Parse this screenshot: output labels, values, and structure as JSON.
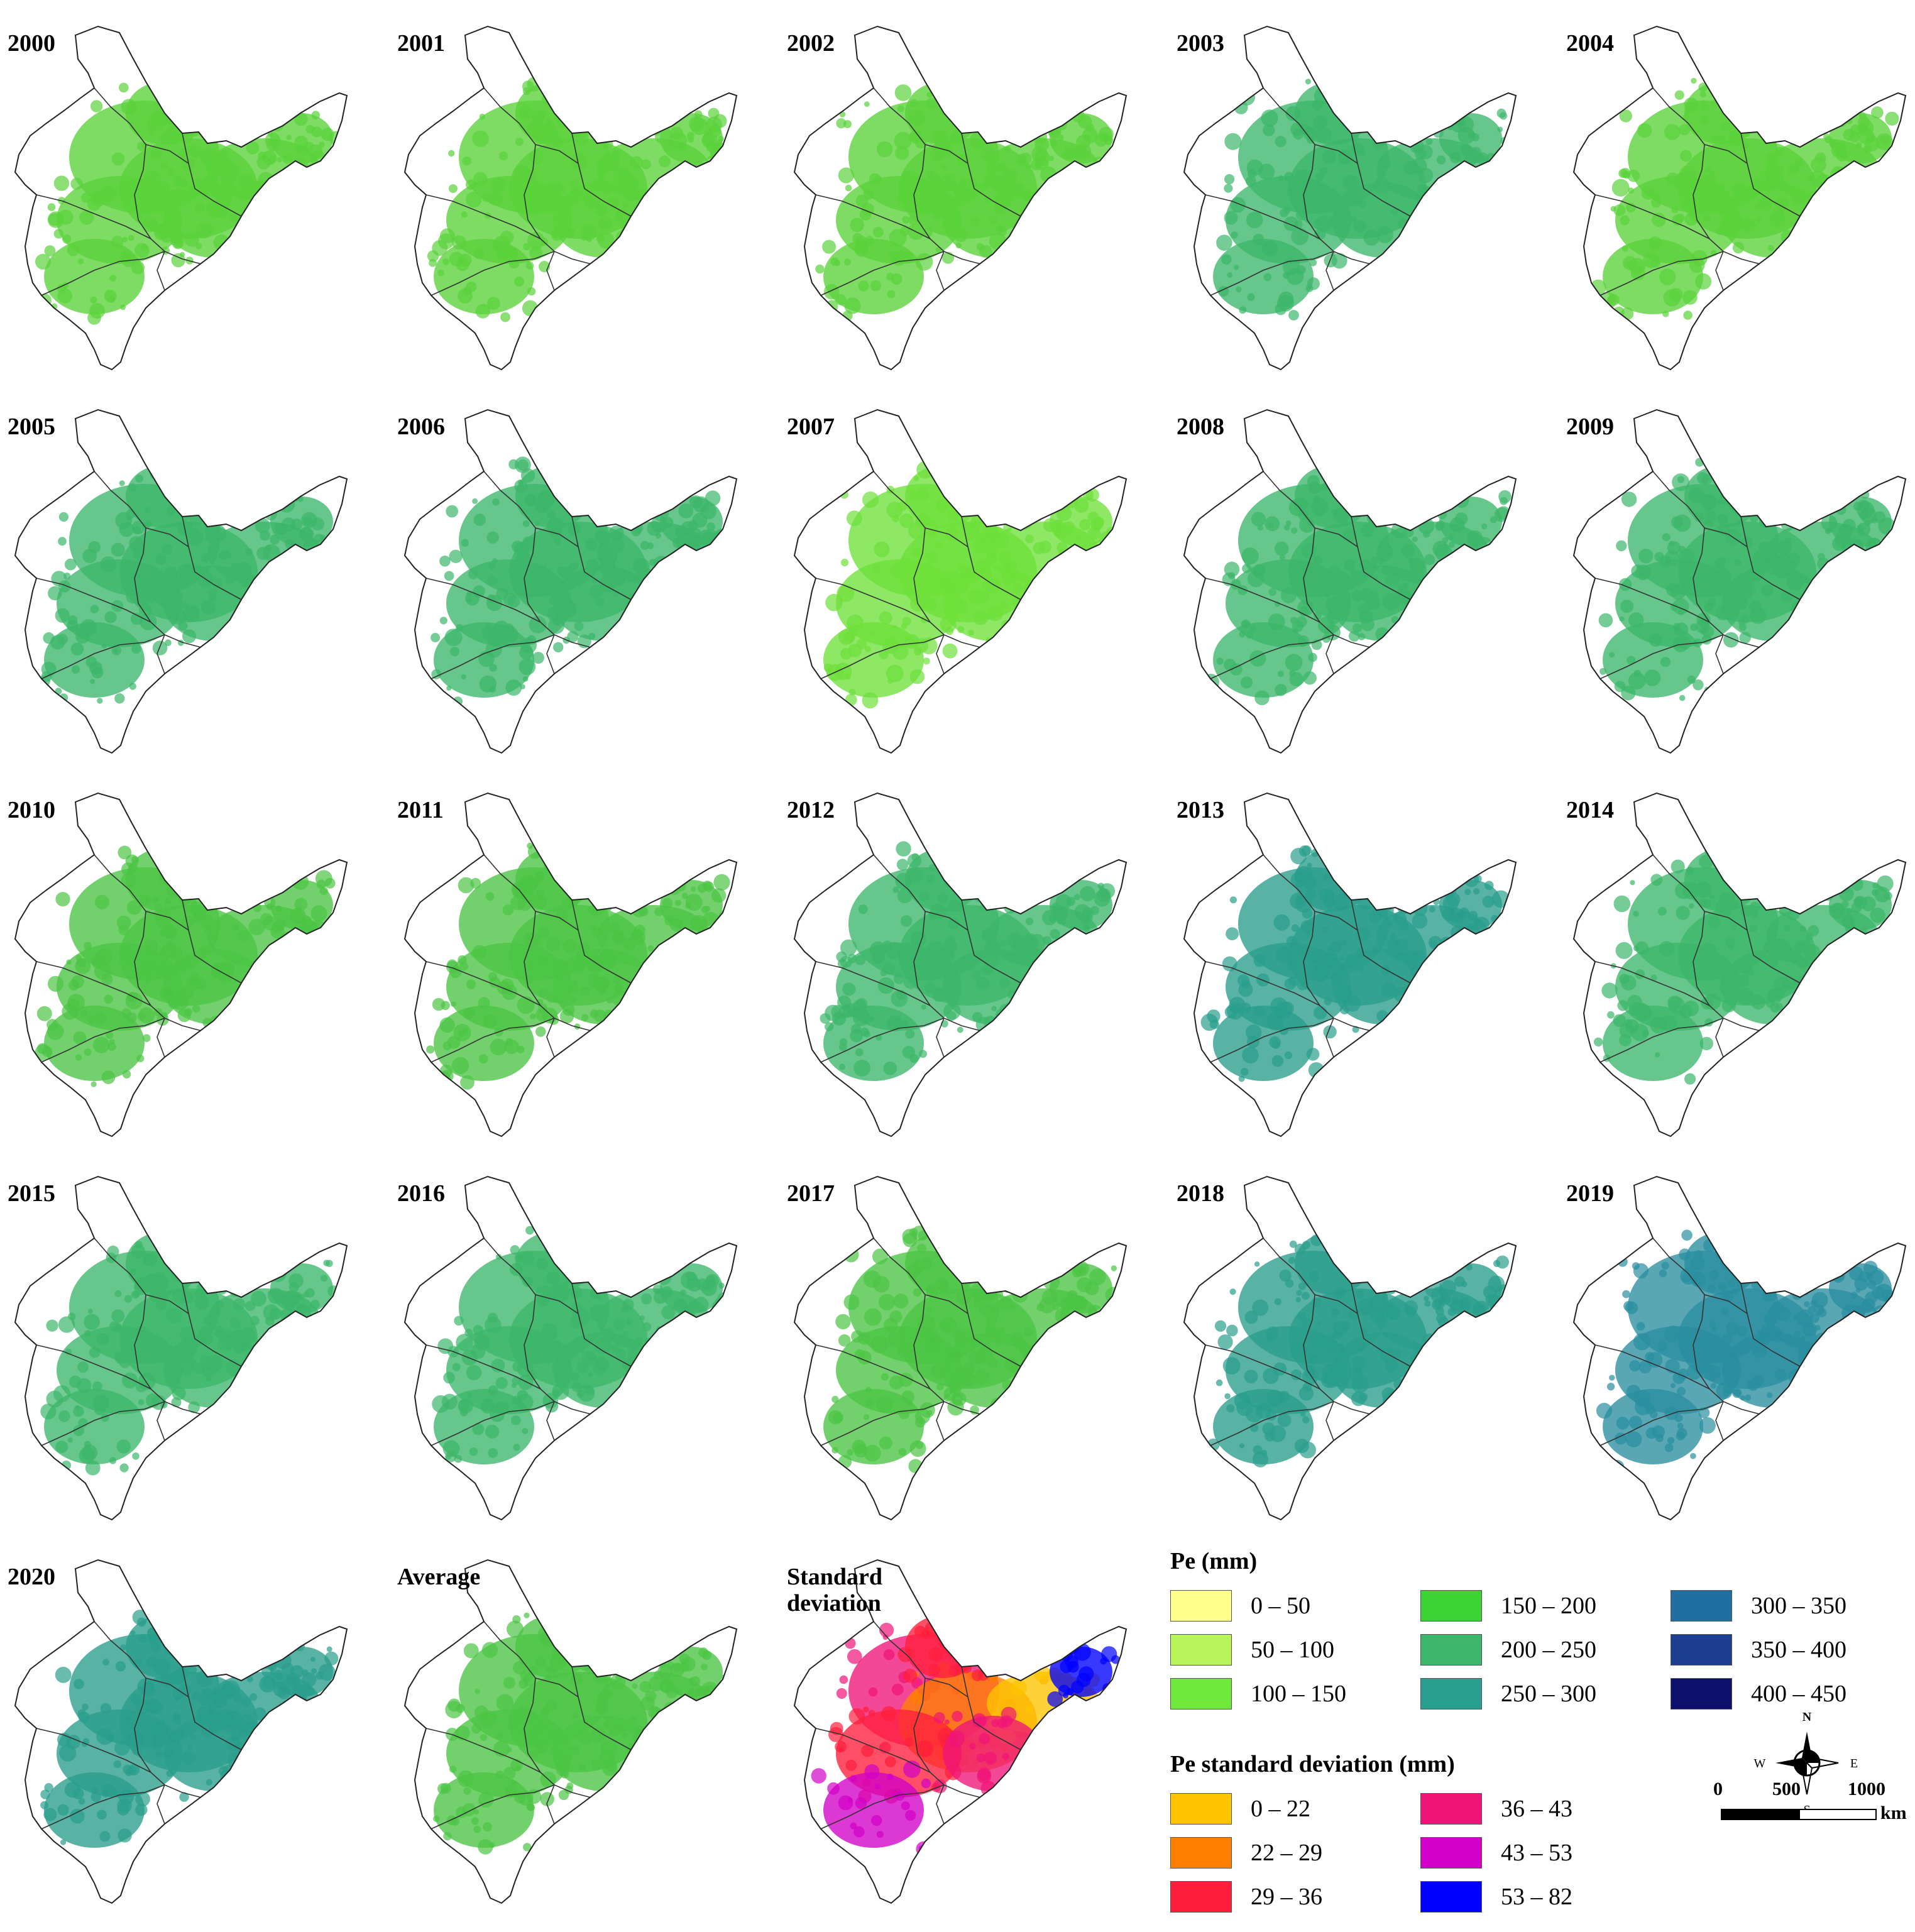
{
  "panels": [
    {
      "label": "2000",
      "fill": "#5ad23a"
    },
    {
      "label": "2001",
      "fill": "#5ad23a"
    },
    {
      "label": "2002",
      "fill": "#5ad23a"
    },
    {
      "label": "2003",
      "fill": "#3cb66a"
    },
    {
      "label": "2004",
      "fill": "#5ad23a"
    },
    {
      "label": "2005",
      "fill": "#3cb66a"
    },
    {
      "label": "2006",
      "fill": "#3cb66a"
    },
    {
      "label": "2007",
      "fill": "#6ee03a"
    },
    {
      "label": "2008",
      "fill": "#3cb66a"
    },
    {
      "label": "2009",
      "fill": "#3cb66a"
    },
    {
      "label": "2010",
      "fill": "#4cc444"
    },
    {
      "label": "2011",
      "fill": "#4cc444"
    },
    {
      "label": "2012",
      "fill": "#3cb66a"
    },
    {
      "label": "2013",
      "fill": "#2a9e8c"
    },
    {
      "label": "2014",
      "fill": "#3cb66a"
    },
    {
      "label": "2015",
      "fill": "#3cb66a"
    },
    {
      "label": "2016",
      "fill": "#3cb66a"
    },
    {
      "label": "2017",
      "fill": "#4cc444"
    },
    {
      "label": "2018",
      "fill": "#2a9e8c"
    },
    {
      "label": "2019",
      "fill": "#2a8ea0"
    },
    {
      "label": "2020",
      "fill": "#2a9e8c"
    },
    {
      "label": "Average",
      "fill": "#4cc444"
    },
    {
      "label": "Standard\ndeviation",
      "fill": "#f5205a",
      "std": true
    }
  ],
  "legend_pe": {
    "title": "Pe (mm)",
    "items": [
      {
        "label": "0 – 50",
        "color": "#ffff8c"
      },
      {
        "label": "50 – 100",
        "color": "#b8f55a"
      },
      {
        "label": "100 – 150",
        "color": "#6ee83a"
      },
      {
        "label": "150 – 200",
        "color": "#3cd434"
      },
      {
        "label": "200 – 250",
        "color": "#3cb66a"
      },
      {
        "label": "250 – 300",
        "color": "#2a9e90"
      },
      {
        "label": "300 – 350",
        "color": "#1f6fa0"
      },
      {
        "label": "350 – 400",
        "color": "#1c3d90"
      },
      {
        "label": "400 – 450",
        "color": "#0e0e6e"
      }
    ]
  },
  "legend_sd": {
    "title": "Pe standard deviation (mm)",
    "items": [
      {
        "label": "0 – 22",
        "color": "#ffc400"
      },
      {
        "label": "22 – 29",
        "color": "#ff8000"
      },
      {
        "label": "29 – 36",
        "color": "#ff1e3c"
      },
      {
        "label": "36 – 43",
        "color": "#f01478"
      },
      {
        "label": "43 – 53",
        "color": "#d200c8"
      },
      {
        "label": "53 – 82",
        "color": "#0000ff"
      }
    ]
  },
  "compass": {
    "n": "N",
    "s": "S",
    "e": "E",
    "w": "W"
  },
  "scale": {
    "ticks": [
      "0",
      "500",
      "1000"
    ],
    "unit": "km"
  }
}
